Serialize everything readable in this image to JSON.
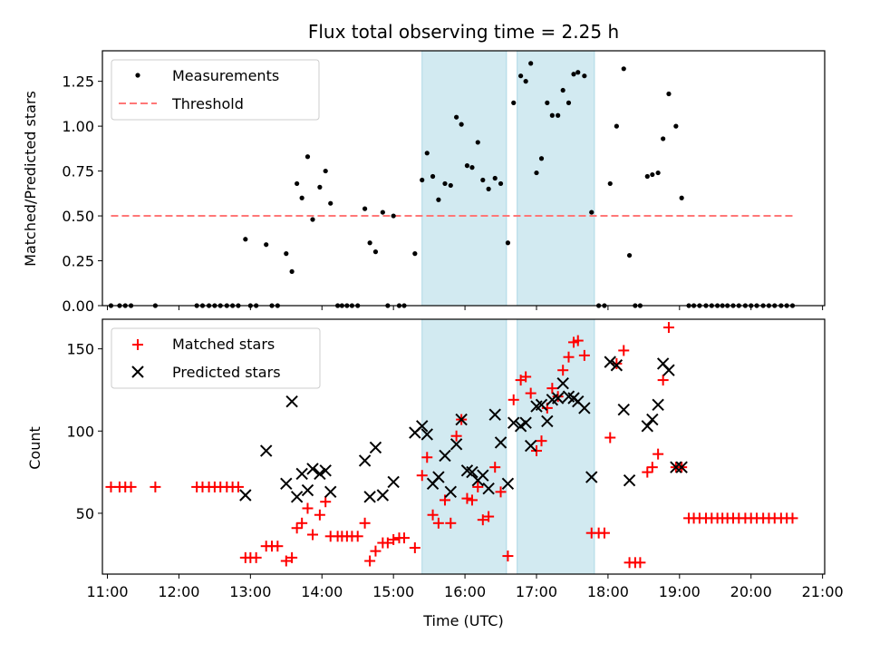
{
  "chart_data": [
    {
      "type": "scatter",
      "title": "Flux total observing time = 2.25 h",
      "ylabel": "Matched/Predicted stars",
      "xlim": [
        10.93,
        21.03
      ],
      "ylim": [
        0,
        1.42
      ],
      "x_ticks": [
        11,
        12,
        13,
        14,
        15,
        16,
        17,
        18,
        19,
        20,
        21
      ],
      "y_ticks": [
        0,
        0.25,
        0.5,
        0.75,
        1.0,
        1.25
      ],
      "y_tick_labels": [
        "0.00",
        "0.25",
        "0.50",
        "0.75",
        "1.00",
        "1.25"
      ],
      "legend_position": "top-left",
      "shaded_intervals": [
        [
          15.4,
          16.58
        ],
        [
          16.73,
          17.81
        ]
      ],
      "shade_color": "#add8e6",
      "threshold": {
        "name": "Threshold",
        "y": 0.5,
        "x_range": [
          11.05,
          20.6
        ],
        "color": "#ff7777"
      },
      "series": [
        {
          "name": "Measurements",
          "color": "#000000",
          "x": [
            11.05,
            11.17,
            11.25,
            11.33,
            11.67,
            12.25,
            12.33,
            12.42,
            12.5,
            12.58,
            12.67,
            12.75,
            12.83,
            12.93,
            13.0,
            13.08,
            13.22,
            13.3,
            13.38,
            13.5,
            13.58,
            13.65,
            13.72,
            13.8,
            13.87,
            13.97,
            14.05,
            14.12,
            14.22,
            14.28,
            14.35,
            14.42,
            14.5,
            14.6,
            14.67,
            14.75,
            14.85,
            14.92,
            15.0,
            15.08,
            15.15,
            15.3,
            15.4,
            15.47,
            15.55,
            15.63,
            15.72,
            15.8,
            15.88,
            15.95,
            16.03,
            16.1,
            16.18,
            16.25,
            16.33,
            16.42,
            16.5,
            16.6,
            16.68,
            16.78,
            16.85,
            16.92,
            17.0,
            17.07,
            17.15,
            17.22,
            17.3,
            17.37,
            17.45,
            17.52,
            17.58,
            17.67,
            17.77,
            17.87,
            17.95,
            18.03,
            18.12,
            18.22,
            18.3,
            18.38,
            18.45,
            18.55,
            18.62,
            18.7,
            18.77,
            18.85,
            18.95,
            19.03,
            19.13,
            19.2,
            19.28,
            19.37,
            19.45,
            19.53,
            19.6,
            19.67,
            19.75,
            19.83,
            19.92,
            20.0,
            20.08,
            20.17,
            20.25,
            20.33,
            20.42,
            20.5,
            20.58
          ],
          "y": [
            0,
            0,
            0,
            0,
            0,
            0,
            0,
            0,
            0,
            0,
            0,
            0,
            0,
            0.37,
            0,
            0,
            0.34,
            0,
            0,
            0.29,
            0.19,
            0.68,
            0.6,
            0.83,
            0.48,
            0.66,
            0.75,
            0.57,
            0,
            0,
            0,
            0,
            0,
            0.54,
            0.35,
            0.3,
            0.52,
            0,
            0.5,
            0,
            0,
            0.29,
            0.7,
            0.85,
            0.72,
            0.59,
            0.68,
            0.67,
            1.05,
            1.01,
            0.78,
            0.77,
            0.91,
            0.7,
            0.65,
            0.71,
            0.68,
            0.35,
            1.13,
            1.28,
            1.25,
            1.35,
            0.74,
            0.82,
            1.13,
            1.06,
            1.06,
            1.2,
            1.13,
            1.29,
            1.3,
            1.28,
            0.52,
            0,
            0,
            0.68,
            1.0,
            1.32,
            0.28,
            0,
            0,
            0.72,
            0.73,
            0.74,
            0.93,
            1.18,
            1.0,
            0.6,
            0,
            0,
            0,
            0,
            0,
            0,
            0,
            0,
            0,
            0,
            0,
            0,
            0,
            0,
            0,
            0,
            0,
            0,
            0
          ]
        }
      ]
    },
    {
      "type": "scatter",
      "xlabel": "Time (UTC)",
      "ylabel": "Count",
      "xlim": [
        10.93,
        21.03
      ],
      "ylim": [
        13,
        168
      ],
      "x_ticks": [
        11,
        12,
        13,
        14,
        15,
        16,
        17,
        18,
        19,
        20,
        21
      ],
      "x_tick_labels": [
        "11:00",
        "12:00",
        "13:00",
        "14:00",
        "15:00",
        "16:00",
        "17:00",
        "18:00",
        "19:00",
        "20:00",
        "21:00"
      ],
      "y_ticks": [
        50,
        100,
        150
      ],
      "y_tick_labels": [
        "50",
        "100",
        "150"
      ],
      "legend_position": "top-left",
      "shaded_intervals": [
        [
          15.4,
          16.58
        ],
        [
          16.73,
          17.81
        ]
      ],
      "shade_color": "#add8e6",
      "series": [
        {
          "name": "Matched stars",
          "marker": "plus",
          "color": "#ff0000",
          "x": [
            11.05,
            11.17,
            11.25,
            11.33,
            11.67,
            12.25,
            12.33,
            12.42,
            12.5,
            12.58,
            12.67,
            12.75,
            12.83,
            12.93,
            13.0,
            13.08,
            13.22,
            13.3,
            13.38,
            13.5,
            13.58,
            13.65,
            13.72,
            13.8,
            13.87,
            13.97,
            14.05,
            14.12,
            14.22,
            14.28,
            14.35,
            14.42,
            14.5,
            14.6,
            14.67,
            14.75,
            14.85,
            14.92,
            15.0,
            15.08,
            15.15,
            15.3,
            15.4,
            15.47,
            15.55,
            15.63,
            15.72,
            15.8,
            15.88,
            15.95,
            16.03,
            16.1,
            16.18,
            16.25,
            16.33,
            16.42,
            16.5,
            16.6,
            16.68,
            16.78,
            16.85,
            16.92,
            17.0,
            17.07,
            17.15,
            17.22,
            17.3,
            17.37,
            17.45,
            17.52,
            17.58,
            17.67,
            17.77,
            17.87,
            17.95,
            18.03,
            18.12,
            18.22,
            18.3,
            18.38,
            18.45,
            18.55,
            18.62,
            18.7,
            18.77,
            18.85,
            18.95,
            19.03,
            19.13,
            19.2,
            19.28,
            19.37,
            19.45,
            19.53,
            19.6,
            19.67,
            19.75,
            19.83,
            19.92,
            20.0,
            20.08,
            20.17,
            20.25,
            20.33,
            20.42,
            20.5,
            20.58
          ],
          "y": [
            66,
            66,
            66,
            66,
            66,
            66,
            66,
            66,
            66,
            66,
            66,
            66,
            66,
            23,
            23,
            23,
            30,
            30,
            30,
            21,
            23,
            41,
            44,
            53,
            37,
            49,
            57,
            36,
            36,
            36,
            36,
            36,
            36,
            44,
            21,
            27,
            32,
            32,
            34,
            35,
            35,
            29,
            73,
            84,
            49,
            44,
            58,
            44,
            97,
            107,
            59,
            58,
            66,
            46,
            48,
            78,
            63,
            24,
            119,
            131,
            133,
            123,
            88,
            94,
            114,
            126,
            121,
            137,
            145,
            154,
            155,
            146,
            38,
            38,
            38,
            96,
            141,
            149,
            20,
            20,
            20,
            75,
            78,
            86,
            131,
            163,
            78,
            78,
            47,
            47,
            47,
            47,
            47,
            47,
            47,
            47,
            47,
            47,
            47,
            47,
            47,
            47,
            47,
            47,
            47,
            47,
            47
          ]
        },
        {
          "name": "Predicted stars",
          "marker": "x",
          "color": "#000000",
          "x": [
            12.93,
            13.22,
            13.5,
            13.58,
            13.65,
            13.72,
            13.8,
            13.87,
            13.97,
            14.05,
            14.12,
            14.6,
            14.67,
            14.75,
            14.85,
            15.0,
            15.3,
            15.4,
            15.47,
            15.55,
            15.63,
            15.72,
            15.8,
            15.88,
            15.95,
            16.03,
            16.1,
            16.18,
            16.25,
            16.33,
            16.42,
            16.5,
            16.6,
            16.68,
            16.78,
            16.85,
            16.92,
            17.0,
            17.07,
            17.15,
            17.22,
            17.3,
            17.37,
            17.45,
            17.52,
            17.58,
            17.67,
            17.77,
            18.03,
            18.12,
            18.22,
            18.3,
            18.55,
            18.62,
            18.7,
            18.77,
            18.85,
            18.95,
            19.03
          ],
          "y": [
            61,
            88,
            68,
            118,
            60,
            74,
            64,
            77,
            74,
            76,
            63,
            82,
            60,
            90,
            61,
            69,
            99,
            103,
            98,
            68,
            72,
            85,
            63,
            92,
            107,
            76,
            75,
            70,
            73,
            65,
            110,
            93,
            68,
            105,
            103,
            105,
            91,
            115,
            116,
            106,
            119,
            120,
            129,
            121,
            120,
            118,
            114,
            72,
            142,
            140,
            113,
            70,
            103,
            107,
            116,
            141,
            137,
            78,
            78
          ]
        }
      ]
    }
  ]
}
